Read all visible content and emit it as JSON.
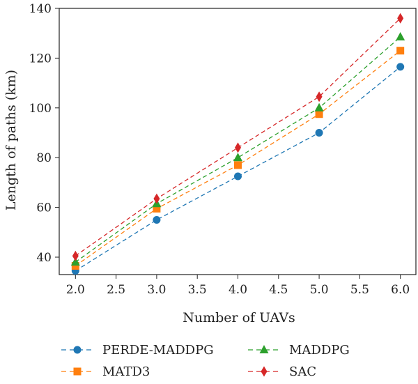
{
  "chart_data": {
    "type": "line",
    "title": "",
    "xlabel": "Number of UAVs",
    "ylabel": "Length of paths (km)",
    "x": [
      2.0,
      3.0,
      4.0,
      5.0,
      6.0
    ],
    "xlim": [
      1.8,
      6.2
    ],
    "ylim": [
      33,
      140
    ],
    "xticks": [
      "2.0",
      "2.5",
      "3.0",
      "3.5",
      "4.0",
      "4.5",
      "5.0",
      "5.5",
      "6.0"
    ],
    "yticks": [
      "40",
      "60",
      "80",
      "100",
      "120",
      "140"
    ],
    "grid": false,
    "legend_position": "bottom",
    "series": [
      {
        "name": "PERDE-MADDPG",
        "values": [
          34.5,
          55.0,
          72.5,
          90.0,
          116.5
        ],
        "color": "#1f77b4",
        "marker": "circle"
      },
      {
        "name": "MATD3",
        "values": [
          36.5,
          59.5,
          77.0,
          97.5,
          123.0
        ],
        "color": "#ff7f0e",
        "marker": "square"
      },
      {
        "name": "MADDPG",
        "values": [
          38.0,
          61.5,
          80.0,
          100.0,
          128.5
        ],
        "color": "#2ca02c",
        "marker": "triangle"
      },
      {
        "name": "SAC",
        "values": [
          40.5,
          63.5,
          84.0,
          104.5,
          136.0
        ],
        "color": "#d62728",
        "marker": "diamond"
      }
    ]
  }
}
